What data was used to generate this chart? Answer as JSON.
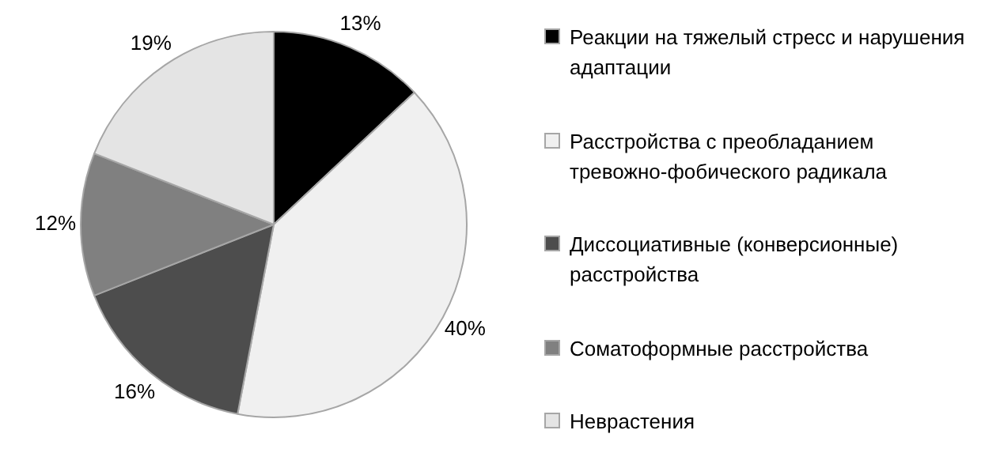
{
  "chart_data": {
    "type": "pie",
    "categories": [
      "Реакции на тяжелый стресс и нарушения адаптации",
      "Расстройства с преобладанием тревожно-фобического радикала",
      "Диссоциативные (конверсионные) расстройства",
      "Соматоформные расстройства",
      "Неврастения"
    ],
    "values": [
      13,
      40,
      16,
      12,
      19
    ],
    "colors": [
      "#000000",
      "#f0f0f0",
      "#4d4d4d",
      "#808080",
      "#e4e4e4"
    ],
    "value_labels": [
      "13%",
      "40%",
      "16%",
      "12%",
      "19%"
    ],
    "legend": "right"
  }
}
